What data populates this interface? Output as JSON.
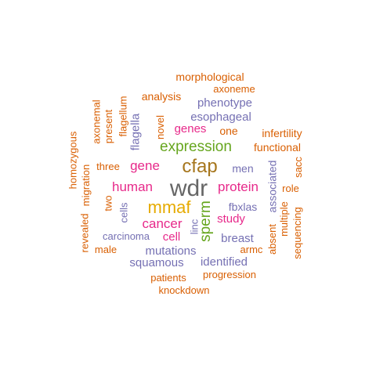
{
  "palette": {
    "orange": "#D95F02",
    "purple": "#7570B3",
    "magenta": "#E7298A",
    "green": "#66A61E",
    "gold": "#E6AB02",
    "brown": "#A6761D",
    "gray": "#666666"
  },
  "words": [
    {
      "text": "wdr",
      "color": "gray",
      "freq": 10,
      "rotated": false
    },
    {
      "text": "cfap",
      "color": "brown",
      "freq": 7,
      "rotated": false
    },
    {
      "text": "mmaf",
      "color": "gold",
      "freq": 6,
      "rotated": false
    },
    {
      "text": "expression",
      "color": "green",
      "freq": 4,
      "rotated": false
    },
    {
      "text": "sperm",
      "color": "green",
      "freq": 4,
      "rotated": true
    },
    {
      "text": "human",
      "color": "magenta",
      "freq": 4,
      "rotated": false
    },
    {
      "text": "cancer",
      "color": "magenta",
      "freq": 4,
      "rotated": false
    },
    {
      "text": "protein",
      "color": "magenta",
      "freq": 4,
      "rotated": false
    },
    {
      "text": "gene",
      "color": "magenta",
      "freq": 4,
      "rotated": false
    },
    {
      "text": "genes",
      "color": "magenta",
      "freq": 3,
      "rotated": false
    },
    {
      "text": "cell",
      "color": "magenta",
      "freq": 3,
      "rotated": false
    },
    {
      "text": "study",
      "color": "magenta",
      "freq": 3,
      "rotated": false
    },
    {
      "text": "associated",
      "color": "purple",
      "freq": 3,
      "rotated": true
    },
    {
      "text": "mutations",
      "color": "purple",
      "freq": 3,
      "rotated": false
    },
    {
      "text": "squamous",
      "color": "purple",
      "freq": 3,
      "rotated": false
    },
    {
      "text": "esophageal",
      "color": "purple",
      "freq": 3,
      "rotated": false
    },
    {
      "text": "breast",
      "color": "purple",
      "freq": 3,
      "rotated": false
    },
    {
      "text": "flagella",
      "color": "purple",
      "freq": 3,
      "rotated": true
    },
    {
      "text": "identified",
      "color": "purple",
      "freq": 3,
      "rotated": false
    },
    {
      "text": "phenotype",
      "color": "purple",
      "freq": 3,
      "rotated": false
    },
    {
      "text": "fbxlas",
      "color": "purple",
      "freq": 3,
      "rotated": false
    },
    {
      "text": "men",
      "color": "purple",
      "freq": 3,
      "rotated": false
    },
    {
      "text": "carcinoma",
      "color": "purple",
      "freq": 3,
      "rotated": false
    },
    {
      "text": "cells",
      "color": "purple",
      "freq": 3,
      "rotated": true
    },
    {
      "text": "linc",
      "color": "purple",
      "freq": 3,
      "rotated": true
    },
    {
      "text": "morphological",
      "color": "orange",
      "freq": 2,
      "rotated": false
    },
    {
      "text": "axoneme",
      "color": "orange",
      "freq": 2,
      "rotated": false
    },
    {
      "text": "analysis",
      "color": "orange",
      "freq": 2,
      "rotated": false
    },
    {
      "text": "axonemal",
      "color": "orange",
      "freq": 2,
      "rotated": true
    },
    {
      "text": "flagellum",
      "color": "orange",
      "freq": 2,
      "rotated": true
    },
    {
      "text": "present",
      "color": "orange",
      "freq": 2,
      "rotated": true
    },
    {
      "text": "novel",
      "color": "orange",
      "freq": 2,
      "rotated": true
    },
    {
      "text": "one",
      "color": "orange",
      "freq": 2,
      "rotated": false
    },
    {
      "text": "infertility",
      "color": "orange",
      "freq": 2,
      "rotated": false
    },
    {
      "text": "functional",
      "color": "orange",
      "freq": 2,
      "rotated": false
    },
    {
      "text": "homozygous",
      "color": "orange",
      "freq": 2,
      "rotated": true
    },
    {
      "text": "migration",
      "color": "orange",
      "freq": 2,
      "rotated": true
    },
    {
      "text": "three",
      "color": "orange",
      "freq": 2,
      "rotated": false
    },
    {
      "text": "two",
      "color": "orange",
      "freq": 2,
      "rotated": true
    },
    {
      "text": "revealed",
      "color": "orange",
      "freq": 2,
      "rotated": true
    },
    {
      "text": "male",
      "color": "orange",
      "freq": 2,
      "rotated": false
    },
    {
      "text": "sacc",
      "color": "orange",
      "freq": 2,
      "rotated": true
    },
    {
      "text": "role",
      "color": "orange",
      "freq": 2,
      "rotated": false
    },
    {
      "text": "multiple",
      "color": "orange",
      "freq": 2,
      "rotated": true
    },
    {
      "text": "sequencing",
      "color": "orange",
      "freq": 2,
      "rotated": true
    },
    {
      "text": "absent",
      "color": "orange",
      "freq": 2,
      "rotated": true
    },
    {
      "text": "armc",
      "color": "orange",
      "freq": 2,
      "rotated": false
    },
    {
      "text": "patients",
      "color": "orange",
      "freq": 2,
      "rotated": false
    },
    {
      "text": "progression",
      "color": "orange",
      "freq": 2,
      "rotated": false
    },
    {
      "text": "knockdown",
      "color": "orange",
      "freq": 2,
      "rotated": false
    }
  ]
}
